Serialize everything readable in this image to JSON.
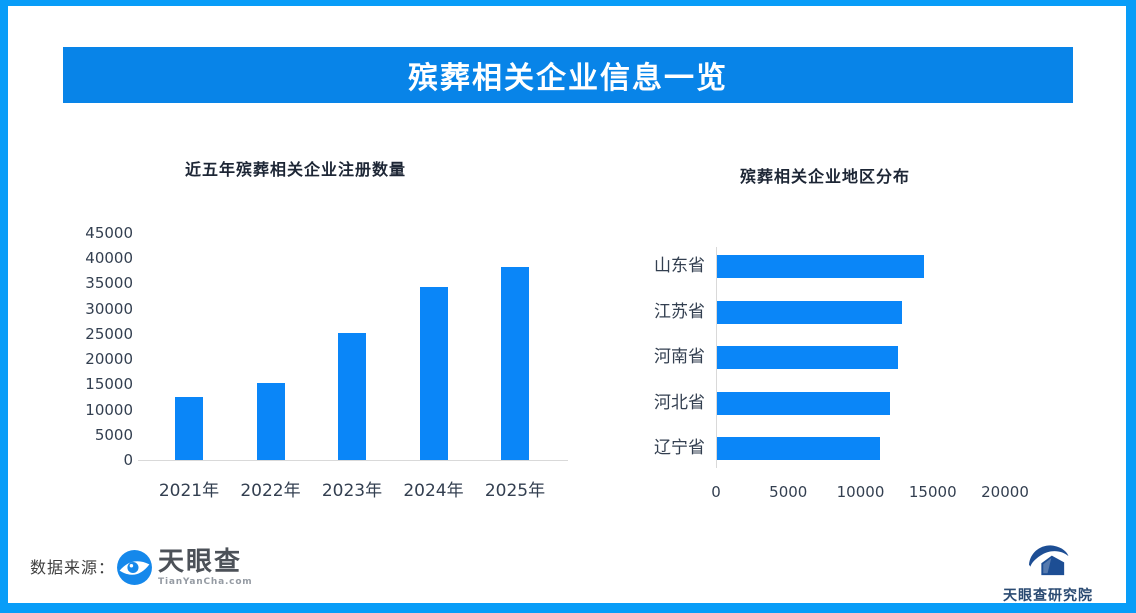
{
  "page": {
    "title": "殡葬相关企业信息一览"
  },
  "colors": {
    "frame_border": "#089df8",
    "banner_bg": "#0884e8",
    "banner_text": "#ffffff",
    "bar_blue": "#0a86f8",
    "axis_text": "#333f50",
    "title_text": "#1d2635",
    "axis_line": "#d9d9d9",
    "source_text": "#3f3f3f",
    "tyc_icon_blue": "#1588eb",
    "tyc_name_text": "#4c5158",
    "tyc_domain_text": "#959ba3",
    "institute_blue": "#1d4e94",
    "institute_text": "#2a4a72"
  },
  "chart_data": [
    {
      "type": "bar",
      "orientation": "vertical",
      "title": "近五年殡葬相关企业注册数量",
      "categories": [
        "2021年",
        "2022年",
        "2023年",
        "2024年",
        "2025年"
      ],
      "values": [
        12500,
        15300,
        25100,
        34200,
        38200
      ],
      "xlabel": "",
      "ylabel": "",
      "ylim": [
        0,
        45000
      ],
      "yticks": [
        0,
        5000,
        10000,
        15000,
        20000,
        25000,
        30000,
        35000,
        40000,
        45000
      ],
      "grid": false,
      "legend": false,
      "bar_color": "#0a86f8"
    },
    {
      "type": "bar",
      "orientation": "horizontal",
      "title": "殡葬相关企业地区分布",
      "categories": [
        "山东省",
        "江苏省",
        "河南省",
        "河北省",
        "辽宁省"
      ],
      "values": [
        14300,
        12800,
        12500,
        12000,
        11300
      ],
      "xlabel": "",
      "ylabel": "",
      "xlim": [
        0,
        20000
      ],
      "xticks": [
        0,
        5000,
        10000,
        15000,
        20000
      ],
      "grid": false,
      "legend": false,
      "bar_color": "#0a86f8"
    }
  ],
  "footer": {
    "source_label": "数据来源：",
    "tianyancha": {
      "name": "天眼查",
      "domain": "TianYanCha.com"
    },
    "institute": {
      "name": "天眼查研究院"
    }
  }
}
